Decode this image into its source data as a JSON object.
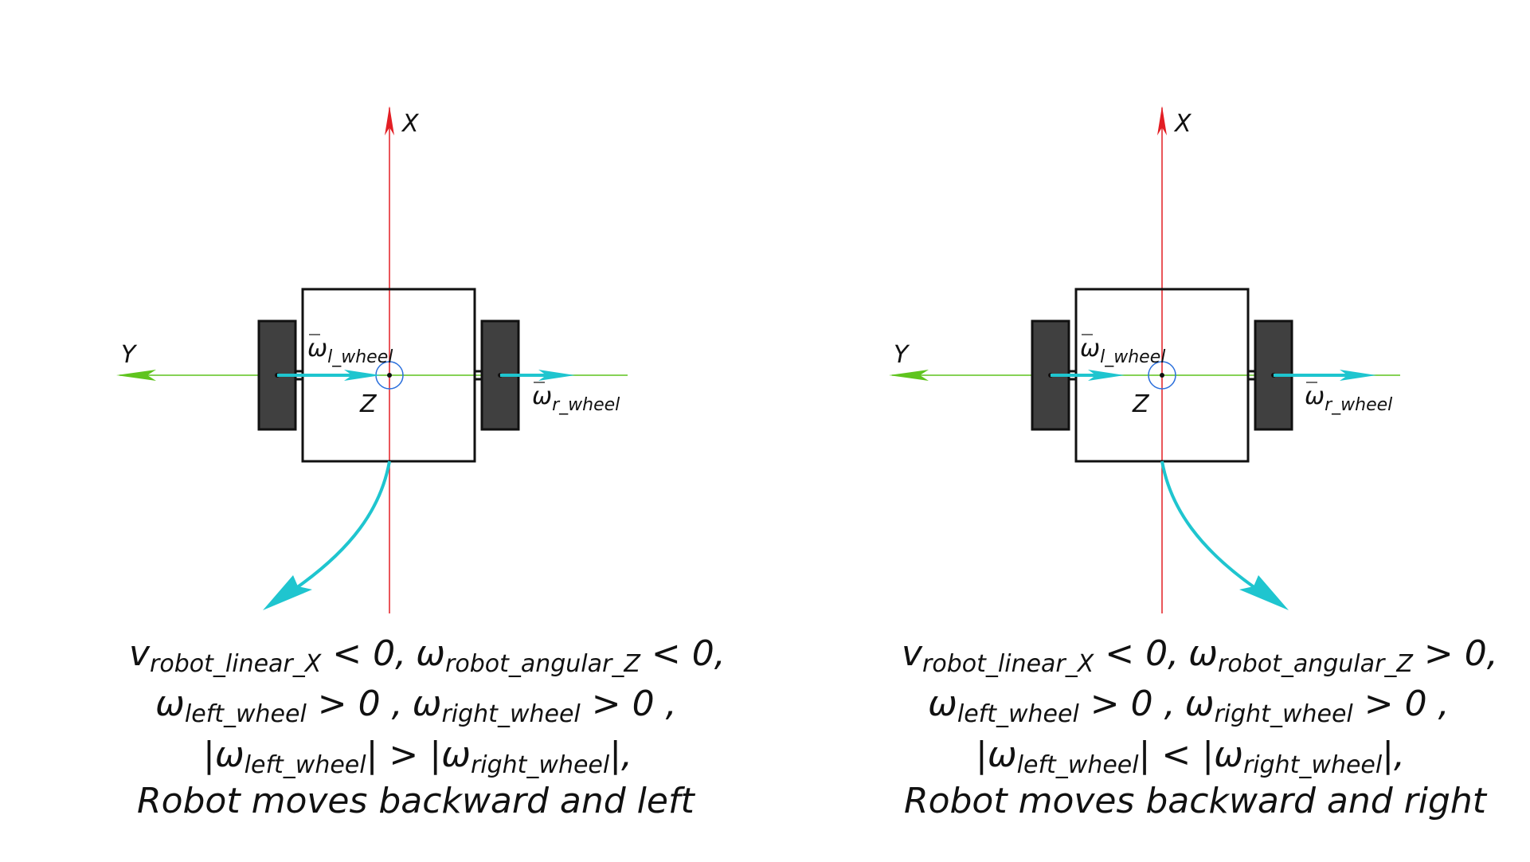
{
  "colors": {
    "x_axis": "#e31e24",
    "y_axis": "#5fc41e",
    "vector": "#1fc5cf",
    "origin": "#2a6fdc",
    "wheel": "#404040"
  },
  "panels": [
    {
      "x_label": "X",
      "y_label": "Y",
      "z_label": "Z",
      "left_wheel_vec": {
        "sym": "ω",
        "sub": "l_wheel"
      },
      "right_wheel_vec": {
        "sym": "ω",
        "sub": "r_wheel"
      },
      "line1": {
        "v": "v",
        "v_sub": "robot_linear_X",
        "v_rel": " < 0,",
        "w": "ω",
        "w_sub": "robot_angular_Z",
        "w_rel": " < 0,"
      },
      "line2": {
        "wl": "ω",
        "wl_sub": "left_wheel",
        "wl_rel": " > 0 ,",
        "wr": "ω",
        "wr_sub": "right_wheel",
        "wr_rel": " > 0 ,"
      },
      "line3": {
        "open": "|ω",
        "l_sub": "left_wheel",
        "mid": "| > |ω",
        "r_sub": "right_wheel",
        "close": "|,"
      },
      "caption": "Robot moves backward and left"
    },
    {
      "x_label": "X",
      "y_label": "Y",
      "z_label": "Z",
      "left_wheel_vec": {
        "sym": "ω",
        "sub": "l_wheel"
      },
      "right_wheel_vec": {
        "sym": "ω",
        "sub": "r_wheel"
      },
      "line1": {
        "v": "v",
        "v_sub": "robot_linear_X",
        "v_rel": " < 0,",
        "w": "ω",
        "w_sub": "robot_angular_Z",
        "w_rel": " > 0,"
      },
      "line2": {
        "wl": "ω",
        "wl_sub": "left_wheel",
        "wl_rel": " > 0 ,",
        "wr": "ω",
        "wr_sub": "right_wheel",
        "wr_rel": " > 0 ,"
      },
      "line3": {
        "open": "|ω",
        "l_sub": "left_wheel",
        "mid": "| < |ω",
        "r_sub": "right_wheel",
        "close": "|,"
      },
      "caption": "Robot moves backward and right"
    }
  ]
}
